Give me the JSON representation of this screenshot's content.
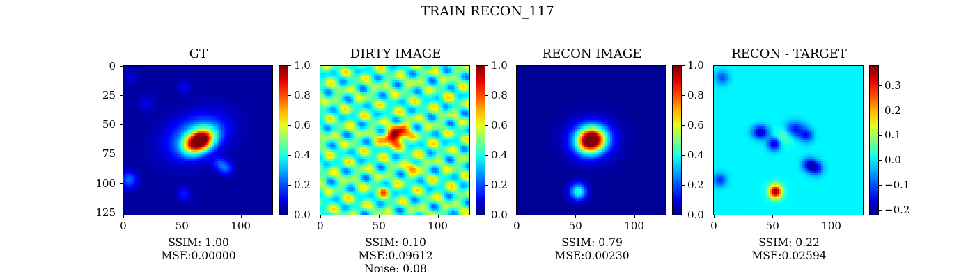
{
  "figure_title": "TRAIN RECON_117",
  "chart_data": [
    {
      "type": "heatmap",
      "title": "GT",
      "colormap": "jet",
      "image_size": 128,
      "xticks": [
        0,
        50,
        100
      ],
      "yticks": [
        0,
        25,
        50,
        75,
        100,
        125
      ],
      "colorbar": {
        "min": 0.0,
        "max": 1.0,
        "ticks": [
          "0.0",
          "0.2",
          "0.4",
          "0.6",
          "0.8",
          "1.0"
        ],
        "tick_values": [
          0.0,
          0.2,
          0.4,
          0.6,
          0.8,
          1.0
        ]
      },
      "metrics": [
        "SSIM: 1.00",
        "MSE:0.00000"
      ],
      "sources": [
        {
          "x": 65,
          "y": 65,
          "sx": 9,
          "sy": 6,
          "amp": 1.0,
          "rot": -0.5
        },
        {
          "x": 63,
          "y": 60,
          "sx": 18,
          "sy": 12,
          "amp": 0.28,
          "rot": -0.4
        },
        {
          "x": 88,
          "y": 88,
          "sx": 4,
          "sy": 4,
          "amp": 0.18,
          "rot": 0
        },
        {
          "x": 82,
          "y": 84,
          "sx": 4,
          "sy": 4,
          "amp": 0.14,
          "rot": 0
        },
        {
          "x": 5,
          "y": 98,
          "sx": 5,
          "sy": 5,
          "amp": 0.2,
          "rot": 0
        },
        {
          "x": 52,
          "y": 110,
          "sx": 4,
          "sy": 4,
          "amp": 0.12,
          "rot": 0
        },
        {
          "x": 52,
          "y": 18,
          "sx": 4,
          "sy": 4,
          "amp": 0.08,
          "rot": 0
        },
        {
          "x": 20,
          "y": 32,
          "sx": 5,
          "sy": 5,
          "amp": 0.07,
          "rot": 0
        },
        {
          "x": 7,
          "y": 10,
          "sx": 4,
          "sy": 4,
          "amp": 0.06,
          "rot": 0
        }
      ],
      "background": 0.03
    },
    {
      "type": "heatmap",
      "title": "DIRTY IMAGE",
      "colormap": "jet",
      "image_size": 128,
      "xticks": [
        0,
        50,
        100
      ],
      "yticks": [],
      "colorbar": {
        "min": 0.0,
        "max": 1.0,
        "ticks": [
          "0.0",
          "0.2",
          "0.4",
          "0.6",
          "0.8",
          "1.0"
        ],
        "tick_values": [
          0.0,
          0.2,
          0.4,
          0.6,
          0.8,
          1.0
        ]
      },
      "metrics": [
        "SSIM: 0.10",
        "MSE:0.09612",
        "Noise: 0.08"
      ],
      "sources": [
        {
          "x": 65,
          "y": 60,
          "sx": 8,
          "sy": 5,
          "amp": 0.55,
          "rot": -0.5
        },
        {
          "x": 80,
          "y": 87,
          "sx": 4,
          "sy": 3,
          "amp": 0.3,
          "rot": 0
        },
        {
          "x": 55,
          "y": 107,
          "sx": 3,
          "sy": 3,
          "amp": 0.25,
          "rot": 0
        }
      ],
      "background": 0.45,
      "ripple": true
    },
    {
      "type": "heatmap",
      "title": "RECON IMAGE",
      "colormap": "jet",
      "image_size": 128,
      "xticks": [
        0,
        50,
        100
      ],
      "yticks": [],
      "colorbar": {
        "min": 0.0,
        "max": 1.0,
        "ticks": [
          "0.0",
          "0.2",
          "0.4",
          "0.6",
          "0.8",
          "1.0"
        ],
        "tick_values": [
          0.0,
          0.2,
          0.4,
          0.6,
          0.8,
          1.0
        ]
      },
      "metrics": [
        "SSIM: 0.79",
        "MSE:0.00230"
      ],
      "sources": [
        {
          "x": 64,
          "y": 64,
          "sx": 8,
          "sy": 7,
          "amp": 1.0,
          "rot": -0.3
        },
        {
          "x": 64,
          "y": 63,
          "sx": 14,
          "sy": 12,
          "amp": 0.25,
          "rot": 0
        },
        {
          "x": 53,
          "y": 108,
          "sx": 5,
          "sy": 5,
          "amp": 0.4,
          "rot": 0
        }
      ],
      "background": 0.02
    },
    {
      "type": "heatmap",
      "title": "RECON - TARGET",
      "colormap": "jet",
      "image_size": 128,
      "xticks": [
        0,
        50,
        100
      ],
      "yticks": [],
      "colorbar": {
        "min": -0.22,
        "max": 0.38,
        "ticks": [
          "0.3",
          "0.2",
          "0.1",
          "0.0",
          "−0.1",
          "−0.2"
        ],
        "tick_values": [
          0.3,
          0.2,
          0.1,
          0.0,
          -0.1,
          -0.2
        ]
      },
      "metrics": [
        "SSIM: 0.22",
        "MSE:0.02594"
      ],
      "sources": [
        {
          "x": 53,
          "y": 108,
          "sx": 4,
          "sy": 4,
          "amp": 0.38,
          "rot": 0
        },
        {
          "x": 40,
          "y": 57,
          "sx": 5,
          "sy": 4,
          "amp": -0.18,
          "rot": 0
        },
        {
          "x": 52,
          "y": 67,
          "sx": 4,
          "sy": 4,
          "amp": -0.18,
          "rot": 0
        },
        {
          "x": 70,
          "y": 55,
          "sx": 6,
          "sy": 5,
          "amp": -0.14,
          "rot": 0
        },
        {
          "x": 80,
          "y": 60,
          "sx": 4,
          "sy": 4,
          "amp": -0.12,
          "rot": 0
        },
        {
          "x": 82,
          "y": 85,
          "sx": 4,
          "sy": 4,
          "amp": -0.16,
          "rot": 0
        },
        {
          "x": 88,
          "y": 88,
          "sx": 4,
          "sy": 4,
          "amp": -0.15,
          "rot": 0
        },
        {
          "x": 5,
          "y": 98,
          "sx": 4,
          "sy": 4,
          "amp": -0.12,
          "rot": 0
        },
        {
          "x": 7,
          "y": 10,
          "sx": 4,
          "sy": 4,
          "amp": -0.1,
          "rot": 0
        },
        {
          "x": 60,
          "y": 61,
          "sx": 6,
          "sy": 5,
          "amp": 0.08,
          "rot": 0
        }
      ],
      "background": 0.0
    }
  ]
}
